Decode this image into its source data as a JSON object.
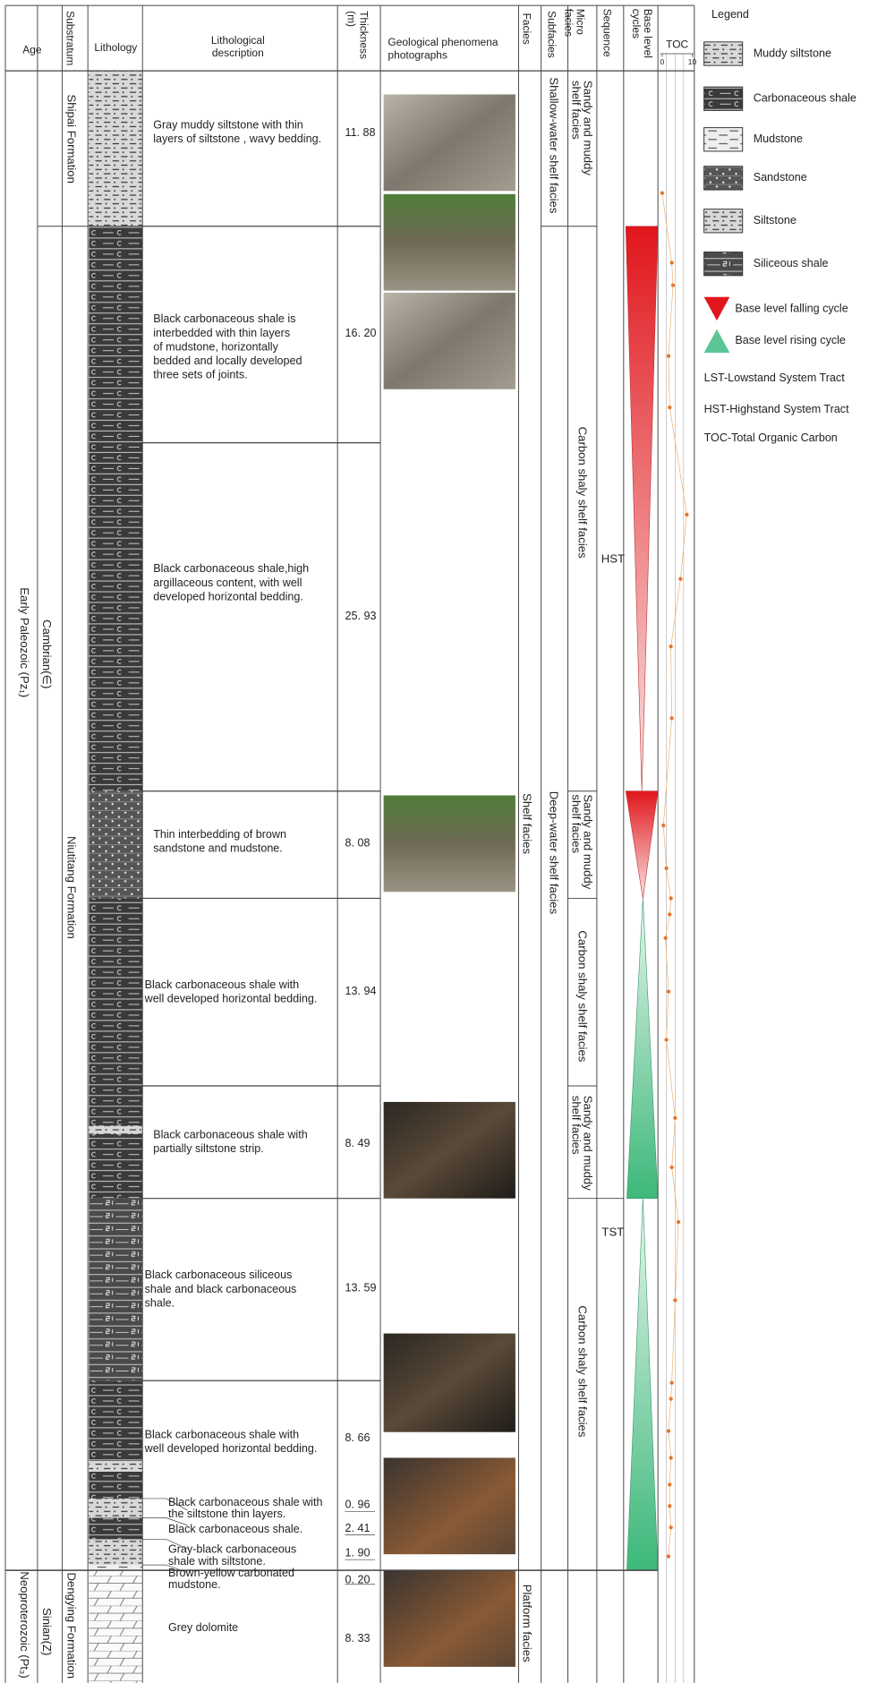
{
  "header": {
    "age": "Age",
    "substratum": "Substratum",
    "lithology": "Lithology",
    "description": [
      "Lithological",
      "description"
    ],
    "thickness": [
      "Thickness",
      "(m)"
    ],
    "photos": [
      "Geological phenomena",
      "photographs"
    ],
    "facies": "Facies",
    "subfacies": "Subfacies",
    "micro_facies": [
      "Micro",
      "facies"
    ],
    "sequence": "Sequence",
    "base_level": [
      "Base level",
      "cycles"
    ],
    "toc": "TOC"
  },
  "toc_axis": {
    "ticks": [
      0,
      10
    ]
  },
  "age": {
    "erathems": [
      "Early Paleozoic (Pz₁)",
      "Neoproterozoic (Pt₃)"
    ],
    "systems": [
      "Cambrian(∈)",
      "Sinian(Z)"
    ]
  },
  "formations": [
    "Shipai Formation",
    "Niutitang Formation",
    "Dengying Formation"
  ],
  "layers": [
    {
      "description": [
        "Gray muddy siltstone with thin",
        "layers of siltstone , wavy bedding."
      ],
      "thickness": "11. 88"
    },
    {
      "description": [
        "Black carbonaceous shale is",
        "interbedded with thin layers",
        "of mudstone, horizontally",
        "bedded and locally developed",
        "three sets of joints."
      ],
      "thickness": "16. 20"
    },
    {
      "description": [
        "Black carbonaceous shale,high",
        "argillaceous content, with well",
        "developed horizontal bedding."
      ],
      "thickness": "25. 93"
    },
    {
      "description": [
        "Thin interbedding of brown",
        "sandstone and mudstone."
      ],
      "thickness": "8. 08"
    },
    {
      "description": [
        "Black carbonaceous shale with",
        "well developed horizontal bedding."
      ],
      "thickness": "13. 94"
    },
    {
      "description": [
        "Black carbonaceous shale with",
        "partially siltstone strip."
      ],
      "thickness": "8. 49"
    },
    {
      "description": [
        "Black carbonaceous siliceous",
        "shale and black carbonaceous",
        "shale."
      ],
      "thickness": "13. 59"
    },
    {
      "description": [
        "Black carbonaceous shale with",
        "well developed horizontal bedding."
      ],
      "thickness": "8. 66"
    },
    {
      "description": [
        "Black carbonaceous shale with",
        "the siltstone thin layers."
      ],
      "thickness": "0. 96"
    },
    {
      "description": [
        "Black carbonaceous shale."
      ],
      "thickness": "2. 41"
    },
    {
      "description": [
        "Gray-black carbonaceous",
        "shale with siltstone."
      ],
      "thickness": "1. 90"
    },
    {
      "description": [
        "Brown-yellow carbonated",
        "mudstone."
      ],
      "thickness": "0. 20"
    },
    {
      "description": [
        "Grey dolomite"
      ],
      "thickness": "8. 33"
    }
  ],
  "facies": [
    "Shelf facies",
    "Platform facies"
  ],
  "subfacies": [
    "Shallow-water shelf facies",
    "Deep-water shelf facies"
  ],
  "micro_facies": [
    [
      "Sandy and muddy",
      "shelf facies"
    ],
    [
      "Carbon shaly shelf facies"
    ],
    [
      "Sandy and muddy",
      "shelf facies"
    ],
    [
      "Carbon shaly shelf facies"
    ],
    [
      "Sandy and muddy",
      "shelf facies"
    ],
    [
      "Carbon shaly shelf facies"
    ]
  ],
  "sequence": [
    "HST",
    "TST"
  ],
  "toc": [
    0.0,
    3.2,
    3.6,
    2.1,
    2.5,
    8.2,
    6.1,
    2.9,
    3.2,
    0.4,
    1.4,
    2.9,
    2.5,
    1.1,
    2.1,
    1.4,
    4.3,
    3.2,
    5.4,
    4.3,
    3.2,
    2.9,
    2.1,
    2.9,
    2.5,
    2.5,
    2.9,
    2.1
  ],
  "legend": {
    "title": "Legend",
    "items": [
      "Muddy siltstone",
      "Carbonaceous shale",
      "Mudstone",
      "Sandstone",
      "Siltstone",
      "Siliceous shale",
      "Base level falling cycle",
      "Base level rising cycle"
    ],
    "notes": [
      "LST-Lowstand System Tract",
      "HST-Highstand System Tract",
      "TOC-Total Organic Carbon"
    ]
  }
}
